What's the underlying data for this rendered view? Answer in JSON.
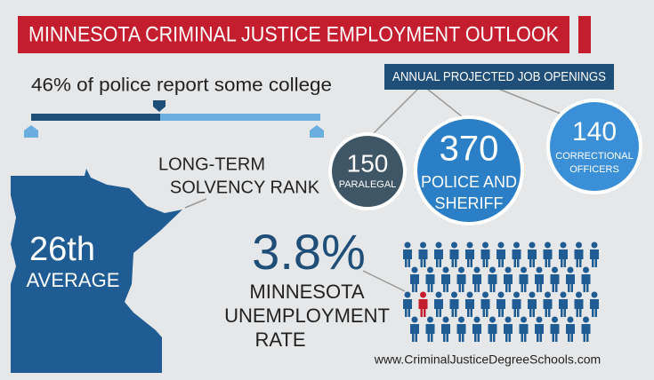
{
  "title": "MINNESOTA CRIMINAL JUSTICE EMPLOYMENT OUTLOOK",
  "college": {
    "text": "46% of police report some college"
  },
  "solvency": {
    "label_lines": [
      "LONG-TERM",
      "SOLVENCY RANK"
    ],
    "rank": "26th",
    "rank_label": "AVERAGE"
  },
  "job_openings": {
    "title": "ANNUAL PROJECTED JOB OPENINGS",
    "items": [
      {
        "value": 150,
        "label_lines": [
          "PARALEGAL"
        ]
      },
      {
        "value": 370,
        "label_lines": [
          "POLICE AND",
          "SHERIFF"
        ]
      },
      {
        "value": 140,
        "label_lines": [
          "CORRECTIONAL",
          "OFFICERS"
        ]
      }
    ]
  },
  "unemployment": {
    "rate": "3.8%",
    "label_lines": [
      "MINNESOTA",
      "UNEMPLOYMENT",
      "RATE"
    ]
  },
  "website": "www.CriminalJusticeDegreeSchools.com"
}
